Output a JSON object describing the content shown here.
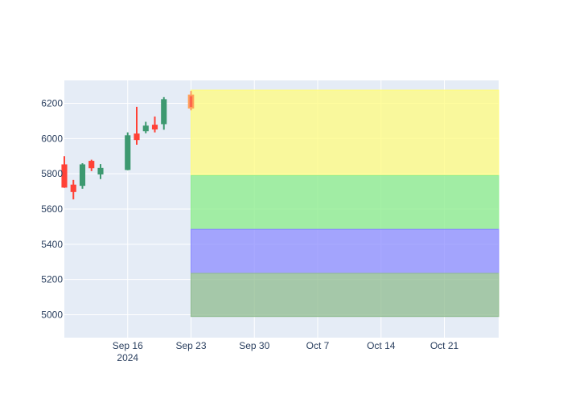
{
  "chart_data": {
    "type": "candlestick",
    "title": "",
    "xlabel": "",
    "ylabel": "",
    "ylim": [
      4870,
      6330
    ],
    "xlim": [
      "2024-09-09",
      "2024-10-27"
    ],
    "grid": true,
    "x_ticks": [
      {
        "date": "2024-09-16",
        "label": "Sep 16",
        "sublabel": "2024"
      },
      {
        "date": "2024-09-23",
        "label": "Sep 23",
        "sublabel": ""
      },
      {
        "date": "2024-09-30",
        "label": "Sep 30",
        "sublabel": ""
      },
      {
        "date": "2024-10-07",
        "label": "Oct 7",
        "sublabel": ""
      },
      {
        "date": "2024-10-14",
        "label": "Oct 14",
        "sublabel": ""
      },
      {
        "date": "2024-10-21",
        "label": "Oct 21",
        "sublabel": ""
      }
    ],
    "y_ticks": [
      5000,
      5200,
      5400,
      5600,
      5800,
      6000,
      6200
    ],
    "candles": [
      {
        "date": "2024-09-09",
        "open": 5850,
        "high": 5900,
        "low": 5720,
        "close": 5725
      },
      {
        "date": "2024-09-10",
        "open": 5735,
        "high": 5765,
        "low": 5655,
        "close": 5700
      },
      {
        "date": "2024-09-11",
        "open": 5735,
        "high": 5860,
        "low": 5715,
        "close": 5850
      },
      {
        "date": "2024-09-12",
        "open": 5870,
        "high": 5880,
        "low": 5815,
        "close": 5835
      },
      {
        "date": "2024-09-13",
        "open": 5800,
        "high": 5855,
        "low": 5770,
        "close": 5830
      },
      {
        "date": "2024-09-16",
        "open": 5825,
        "high": 6035,
        "low": 5820,
        "close": 6015
      },
      {
        "date": "2024-09-17",
        "open": 6025,
        "high": 6180,
        "low": 5965,
        "close": 5995
      },
      {
        "date": "2024-09-18",
        "open": 6045,
        "high": 6095,
        "low": 6030,
        "close": 6070
      },
      {
        "date": "2024-09-19",
        "open": 6075,
        "high": 6125,
        "low": 6035,
        "close": 6055
      },
      {
        "date": "2024-09-20",
        "open": 6085,
        "high": 6235,
        "low": 6050,
        "close": 6220
      },
      {
        "date": "2024-09-23",
        "open": 6245,
        "high": 6270,
        "low": 6160,
        "close": 6175
      }
    ],
    "colors": {
      "increasing": "#3d9970",
      "decreasing": "#ff4136",
      "highlight": "#ffa15a",
      "plot_bg": "#e5ecf6",
      "grid": "#ffffff",
      "tick_text": "#2a3f5f"
    },
    "bands": [
      {
        "x0": "2024-09-23",
        "x1": "2024-10-27",
        "y0": 5790,
        "y1": 6275,
        "color": "#fffc7e",
        "opacity": 0.75
      },
      {
        "x0": "2024-09-23",
        "x1": "2024-10-27",
        "y0": 5485,
        "y1": 5790,
        "color": "#90ee90",
        "opacity": 0.8
      },
      {
        "x0": "2024-09-23",
        "x1": "2024-10-27",
        "y0": 5235,
        "y1": 5485,
        "color": "#8c8cff",
        "opacity": 0.75
      },
      {
        "x0": "2024-09-23",
        "x1": "2024-10-27",
        "y0": 4990,
        "y1": 5235,
        "color": "#8fbc8f",
        "opacity": 0.75
      }
    ]
  }
}
